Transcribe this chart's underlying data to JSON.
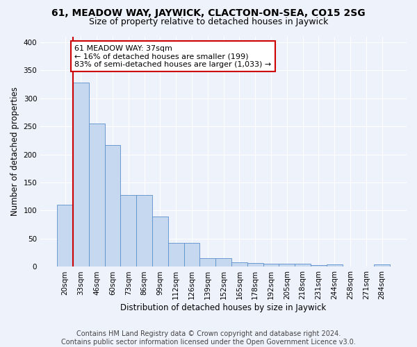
{
  "title": "61, MEADOW WAY, JAYWICK, CLACTON-ON-SEA, CO15 2SG",
  "subtitle": "Size of property relative to detached houses in Jaywick",
  "xlabel": "Distribution of detached houses by size in Jaywick",
  "ylabel": "Number of detached properties",
  "categories": [
    "20sqm",
    "33sqm",
    "46sqm",
    "60sqm",
    "73sqm",
    "86sqm",
    "99sqm",
    "112sqm",
    "126sqm",
    "139sqm",
    "152sqm",
    "165sqm",
    "178sqm",
    "192sqm",
    "205sqm",
    "218sqm",
    "231sqm",
    "244sqm",
    "258sqm",
    "271sqm",
    "284sqm"
  ],
  "values": [
    110,
    328,
    255,
    217,
    128,
    128,
    90,
    43,
    42,
    15,
    15,
    8,
    7,
    5,
    6,
    5,
    3,
    4,
    0,
    0,
    4
  ],
  "bar_color": "#c5d8f0",
  "bar_edge_color": "#5b8fc9",
  "vline_color": "#cc0000",
  "annotation_text": "61 MEADOW WAY: 37sqm\n← 16% of detached houses are smaller (199)\n83% of semi-detached houses are larger (1,033) →",
  "annotation_box_color": "#ffffff",
  "annotation_box_edge": "#cc0000",
  "ylim": [
    0,
    410
  ],
  "yticks": [
    0,
    50,
    100,
    150,
    200,
    250,
    300,
    350,
    400
  ],
  "footer": "Contains HM Land Registry data © Crown copyright and database right 2024.\nContains public sector information licensed under the Open Government Licence v3.0.",
  "background_color": "#eef2fb",
  "plot_background": "#eef2fb",
  "grid_color": "#ffffff",
  "title_fontsize": 10,
  "subtitle_fontsize": 9,
  "xlabel_fontsize": 8.5,
  "ylabel_fontsize": 8.5,
  "tick_fontsize": 7.5,
  "footer_fontsize": 7,
  "annotation_fontsize": 8
}
